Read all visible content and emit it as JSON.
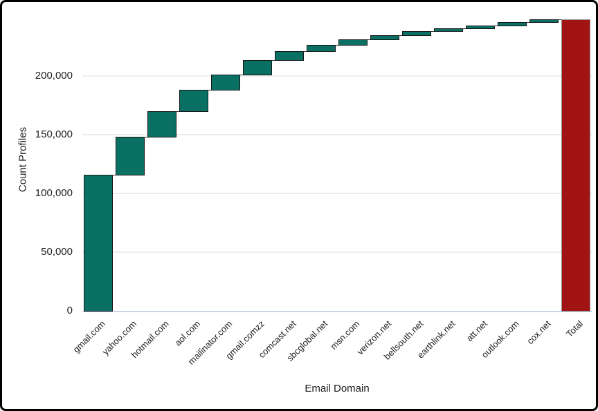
{
  "chart_data": {
    "type": "waterfall",
    "title": "",
    "xlabel": "Email Domain",
    "ylabel": "Count Profiles",
    "categories": [
      "gmail.com",
      "yahoo.com",
      "hotmail.com",
      "aol.com",
      "mailinator.com",
      "gmail.comzz",
      "comcast.net",
      "sbcglobal.net",
      "msn.com",
      "verizon.net",
      "bellsouth.net",
      "earthlink.net",
      "att.net",
      "outlook.com",
      "cox.net",
      "Total"
    ],
    "values": [
      116000,
      32500,
      21500,
      18500,
      13000,
      12000,
      8000,
      5000,
      5000,
      3700,
      3300,
      2500,
      2500,
      2400,
      2600,
      248500
    ],
    "measure": [
      "relative",
      "relative",
      "relative",
      "relative",
      "relative",
      "relative",
      "relative",
      "relative",
      "relative",
      "relative",
      "relative",
      "relative",
      "relative",
      "relative",
      "relative",
      "total"
    ],
    "cumulative": [
      116000,
      148500,
      170000,
      188500,
      201500,
      213500,
      221500,
      226500,
      231500,
      235200,
      238500,
      241000,
      243500,
      245900,
      248500,
      248500
    ],
    "yticks": [
      0,
      50000,
      100000,
      150000,
      200000
    ],
    "ytick_labels": [
      "0",
      "50,000",
      "100,000",
      "150,000",
      "200,000"
    ],
    "ylim": [
      0,
      254500
    ],
    "grid": "horizontal",
    "legend": "none",
    "x_label_rotation_deg": 45,
    "colors": {
      "relative_bar": "#0a7064",
      "total_bar": "#a21414",
      "bar_border": "#151515",
      "total_bar_border": "#8d8d8d",
      "gridline": "#ececec",
      "axis_line": "#c7d2ea",
      "text": "#1b1b1b",
      "frame_border": "#000000"
    }
  }
}
